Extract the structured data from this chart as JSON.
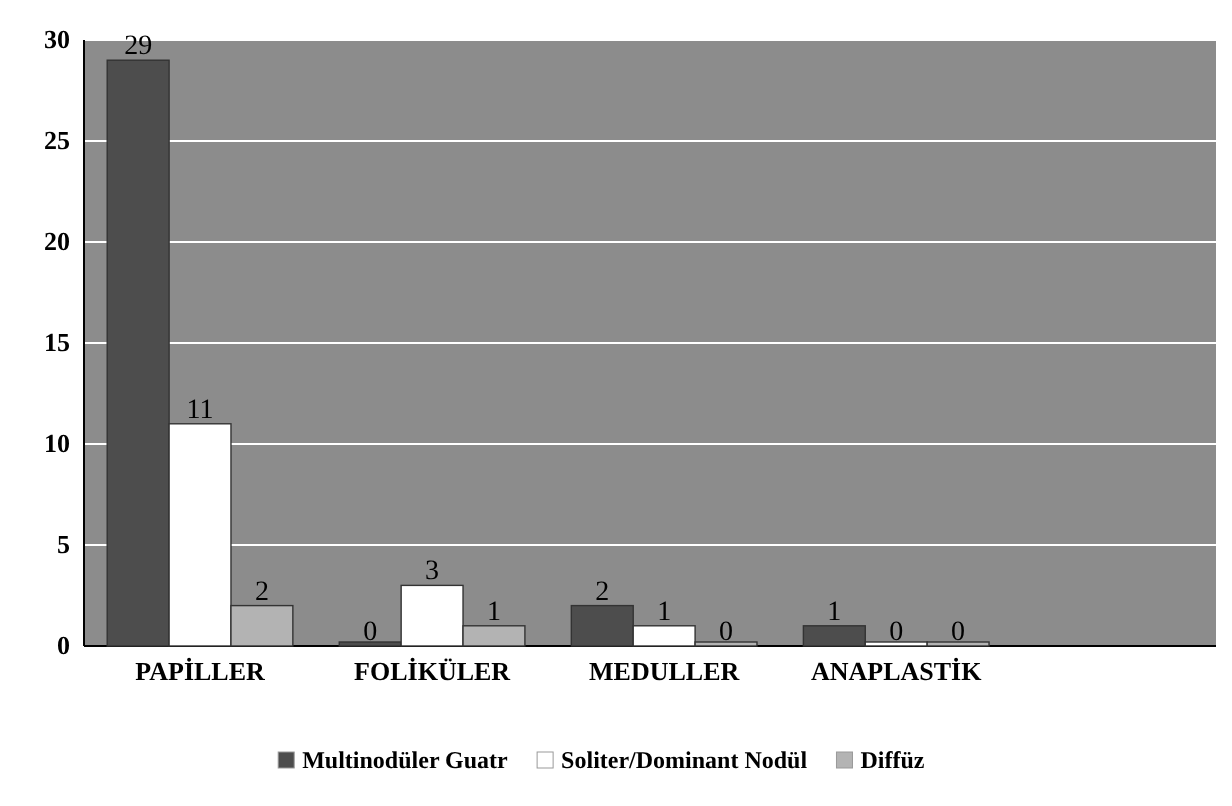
{
  "chart_data": {
    "type": "bar",
    "categories": [
      "PAPİLLER",
      "FOLİKÜLER",
      "MEDULLER",
      "ANAPLASTİK"
    ],
    "series": [
      {
        "name": "Multinodüler Guatr",
        "color": "#4d4d4d",
        "values": [
          29,
          0,
          2,
          1
        ]
      },
      {
        "name": "Soliter/Dominant Nodül",
        "color": "#ffffff",
        "values": [
          11,
          3,
          1,
          0
        ]
      },
      {
        "name": "Diffüz",
        "color": "#b3b3b3",
        "values": [
          2,
          1,
          0,
          0
        ]
      }
    ],
    "ylim": [
      0,
      30
    ],
    "yticks": [
      0,
      5,
      10,
      15,
      20,
      25,
      30
    ],
    "grid": "y",
    "legend": "bottom",
    "data_labels": true
  }
}
